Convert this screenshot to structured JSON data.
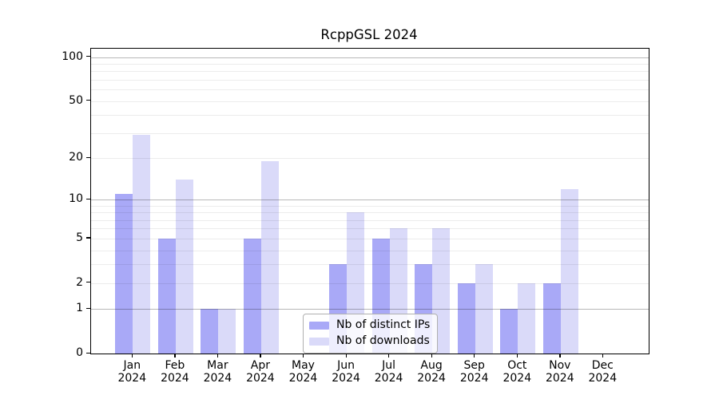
{
  "title": "RcppGSL 2024",
  "chart_data": {
    "type": "bar",
    "categories": [
      "Jan",
      "Feb",
      "Mar",
      "Apr",
      "May",
      "Jun",
      "Jul",
      "Aug",
      "Sep",
      "Oct",
      "Nov",
      "Dec"
    ],
    "year": "2024",
    "series": [
      {
        "name": "Nb of distinct IPs",
        "color": "#a9a9f7",
        "values": [
          11,
          5,
          1,
          5,
          0,
          3,
          5,
          3,
          2,
          1,
          2,
          0
        ]
      },
      {
        "name": "Nb of downloads",
        "color": "#dadaf9",
        "values": [
          29,
          14,
          1,
          19,
          0,
          8,
          6,
          6,
          3,
          2,
          12,
          0
        ]
      }
    ],
    "yscale": "log1p",
    "ylim": [
      0,
      115
    ],
    "ytick_values": [
      100,
      50,
      20,
      10,
      5,
      2,
      1,
      0
    ],
    "ytick_labels": [
      "100",
      "50",
      "20",
      "10",
      "5",
      "2",
      "1",
      "0"
    ],
    "major_grid_values": [
      1,
      10,
      100
    ],
    "minor_grid_values": [
      2,
      3,
      4,
      5,
      6,
      7,
      8,
      9,
      20,
      30,
      40,
      50,
      60,
      70,
      80,
      90
    ],
    "grid": true,
    "legend_position": "lower center",
    "colors": {
      "axis": "#000000",
      "major_grid": "rgba(0,0,0,0.28)",
      "minor_grid": "rgba(0,0,0,0.075)",
      "legend_border": "#b0b0b0",
      "legend_background": "rgba(255,255,255,0.8)"
    }
  }
}
